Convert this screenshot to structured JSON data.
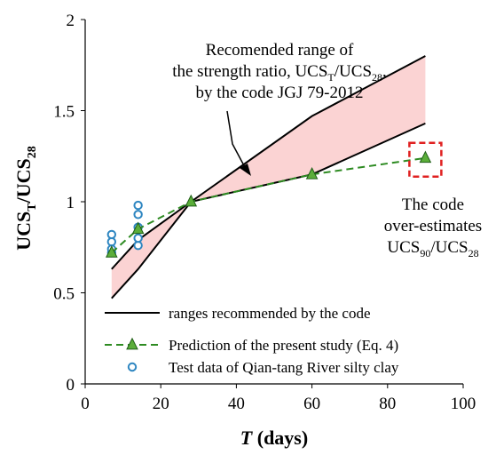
{
  "chart_data": {
    "type": "line",
    "xlabel": "T (days)",
    "xlabel_parts": {
      "italic": "T",
      "rest": " (days)"
    },
    "ylabel": "UCS_T/UCS_28",
    "ylabel_parts": {
      "main": "UCS",
      "sub1": "T",
      "sep": "/UCS",
      "sub2": "28"
    },
    "xlim": [
      0,
      100
    ],
    "ylim": [
      0,
      2
    ],
    "xticks": [
      "0",
      "20",
      "40",
      "60",
      "80",
      "100"
    ],
    "yticks": [
      "0",
      "0.5",
      "1",
      "1.5",
      "2"
    ],
    "grid": false,
    "legend_position": "bottom-left",
    "series": [
      {
        "name": "ranges recommended by the code",
        "style": "solid-line",
        "color": "#000000",
        "upper": {
          "x": [
            7,
            14,
            28,
            60,
            90
          ],
          "y": [
            0.63,
            0.79,
            1.0,
            1.47,
            1.8
          ]
        },
        "lower": {
          "x": [
            7,
            14,
            28,
            60,
            90
          ],
          "y": [
            0.47,
            0.63,
            1.0,
            1.15,
            1.43
          ]
        }
      },
      {
        "name": "Prediction of the present study (Eq. 4)",
        "style": "dashed-line-triangle",
        "color": "#2e8b22",
        "x": [
          7,
          14,
          28,
          60,
          90
        ],
        "y": [
          0.72,
          0.85,
          1.0,
          1.15,
          1.24
        ]
      },
      {
        "name": "Test data of Qian-tang River silty clay",
        "style": "circle-markers",
        "color": "#2e86c1",
        "x": [
          7,
          7,
          7,
          7,
          14,
          14,
          14,
          14,
          14
        ],
        "y": [
          0.72,
          0.78,
          0.82,
          0.74,
          0.76,
          0.8,
          0.86,
          0.93,
          0.98
        ]
      }
    ],
    "band_fill_color": "#fbd3d3",
    "annotations": [
      {
        "id": "range",
        "lines": [
          {
            "text": "Recomended range of"
          },
          {
            "text": "the strength ratio, UCS",
            "sub": "T",
            "after": "/UCS",
            "sub2": "28",
            "tail": ","
          },
          {
            "text": "by the code JGJ 79-2012"
          }
        ]
      },
      {
        "id": "overestimate",
        "lines": [
          {
            "text": "The code"
          },
          {
            "text": "over-estimates"
          },
          {
            "text": "UCS",
            "sub": "90",
            "after": "/UCS",
            "sub2": "28"
          }
        ]
      }
    ]
  }
}
